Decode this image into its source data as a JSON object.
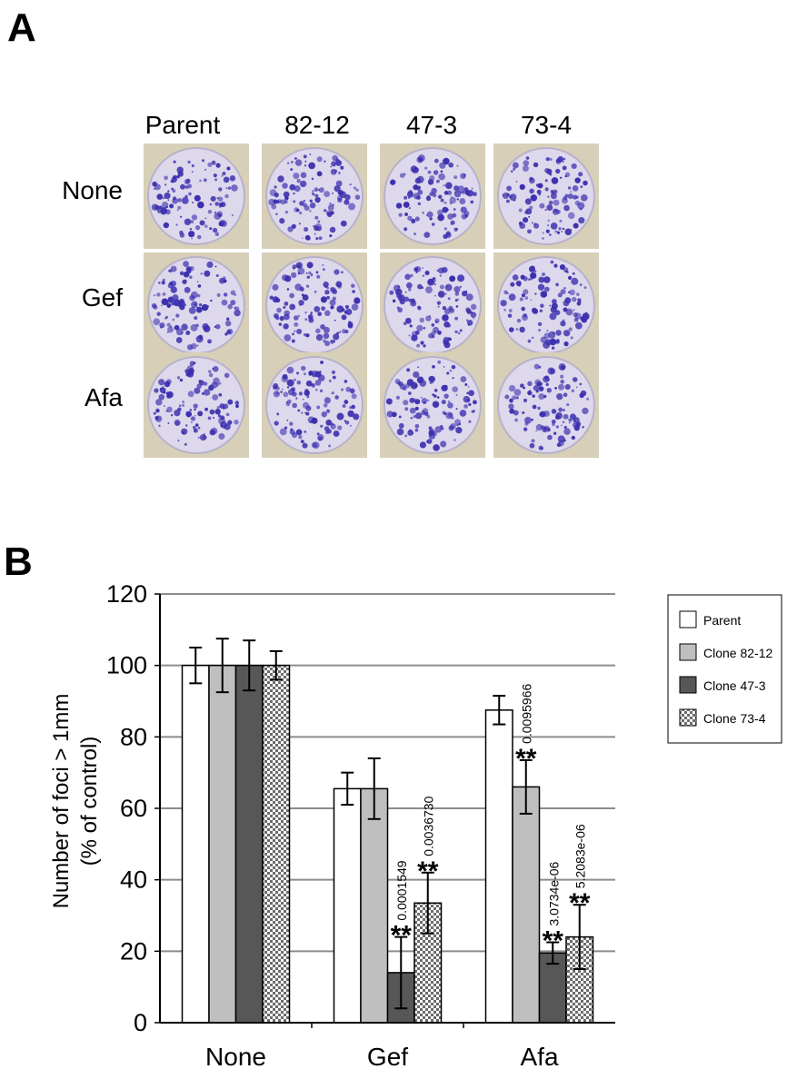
{
  "panel_a": {
    "letter": "A",
    "columns": [
      "Parent",
      "82-12",
      "47-3",
      "73-4"
    ],
    "rows": [
      "None",
      "Gef",
      "Afa"
    ],
    "colors": {
      "stain": "#3b2fae",
      "plate_bg": "#ddd8ec",
      "card_bg": "#d8cfb9"
    }
  },
  "panel_b": {
    "letter": "B",
    "legend": [
      "Parent",
      "Clone 82-12",
      "Clone 47-3",
      "Clone 73-4"
    ]
  },
  "chart_data": {
    "type": "bar",
    "categories": [
      "None",
      "Gef",
      "Afa"
    ],
    "ylabel": [
      "Number of foci > 1mm",
      "(% of control)"
    ],
    "ylim": [
      0,
      120
    ],
    "yticks": [
      0,
      20,
      40,
      60,
      80,
      100,
      120
    ],
    "grid": true,
    "legend_position": "right",
    "series": [
      {
        "name": "Parent",
        "values": [
          100,
          65.5,
          87.5
        ],
        "errors": [
          5,
          4.5,
          4
        ],
        "fill": "#ffffff"
      },
      {
        "name": "Clone 82-12",
        "values": [
          100,
          65.5,
          66
        ],
        "errors": [
          7.5,
          8.5,
          7.5
        ],
        "fill": "#bfbfbf"
      },
      {
        "name": "Clone 47-3",
        "values": [
          100,
          14,
          19.5
        ],
        "errors": [
          7,
          10,
          3
        ],
        "fill": "#575757"
      },
      {
        "name": "Clone 73-4",
        "values": [
          100,
          33.5,
          24
        ],
        "errors": [
          4,
          8.5,
          9
        ],
        "fill": "checker"
      }
    ],
    "annotations": [
      {
        "category": "Gef",
        "series": "Clone 47-3",
        "stars": "**",
        "pvalue": "0.0001549"
      },
      {
        "category": "Gef",
        "series": "Clone 73-4",
        "stars": "**",
        "pvalue": "0.0036730"
      },
      {
        "category": "Afa",
        "series": "Clone 82-12",
        "stars": "**",
        "pvalue": "0.0095966"
      },
      {
        "category": "Afa",
        "series": "Clone 47-3",
        "stars": "**",
        "pvalue": "3.0734e-06"
      },
      {
        "category": "Afa",
        "series": "Clone 73-4",
        "stars": "**",
        "pvalue": "5.2083e-06"
      }
    ]
  }
}
